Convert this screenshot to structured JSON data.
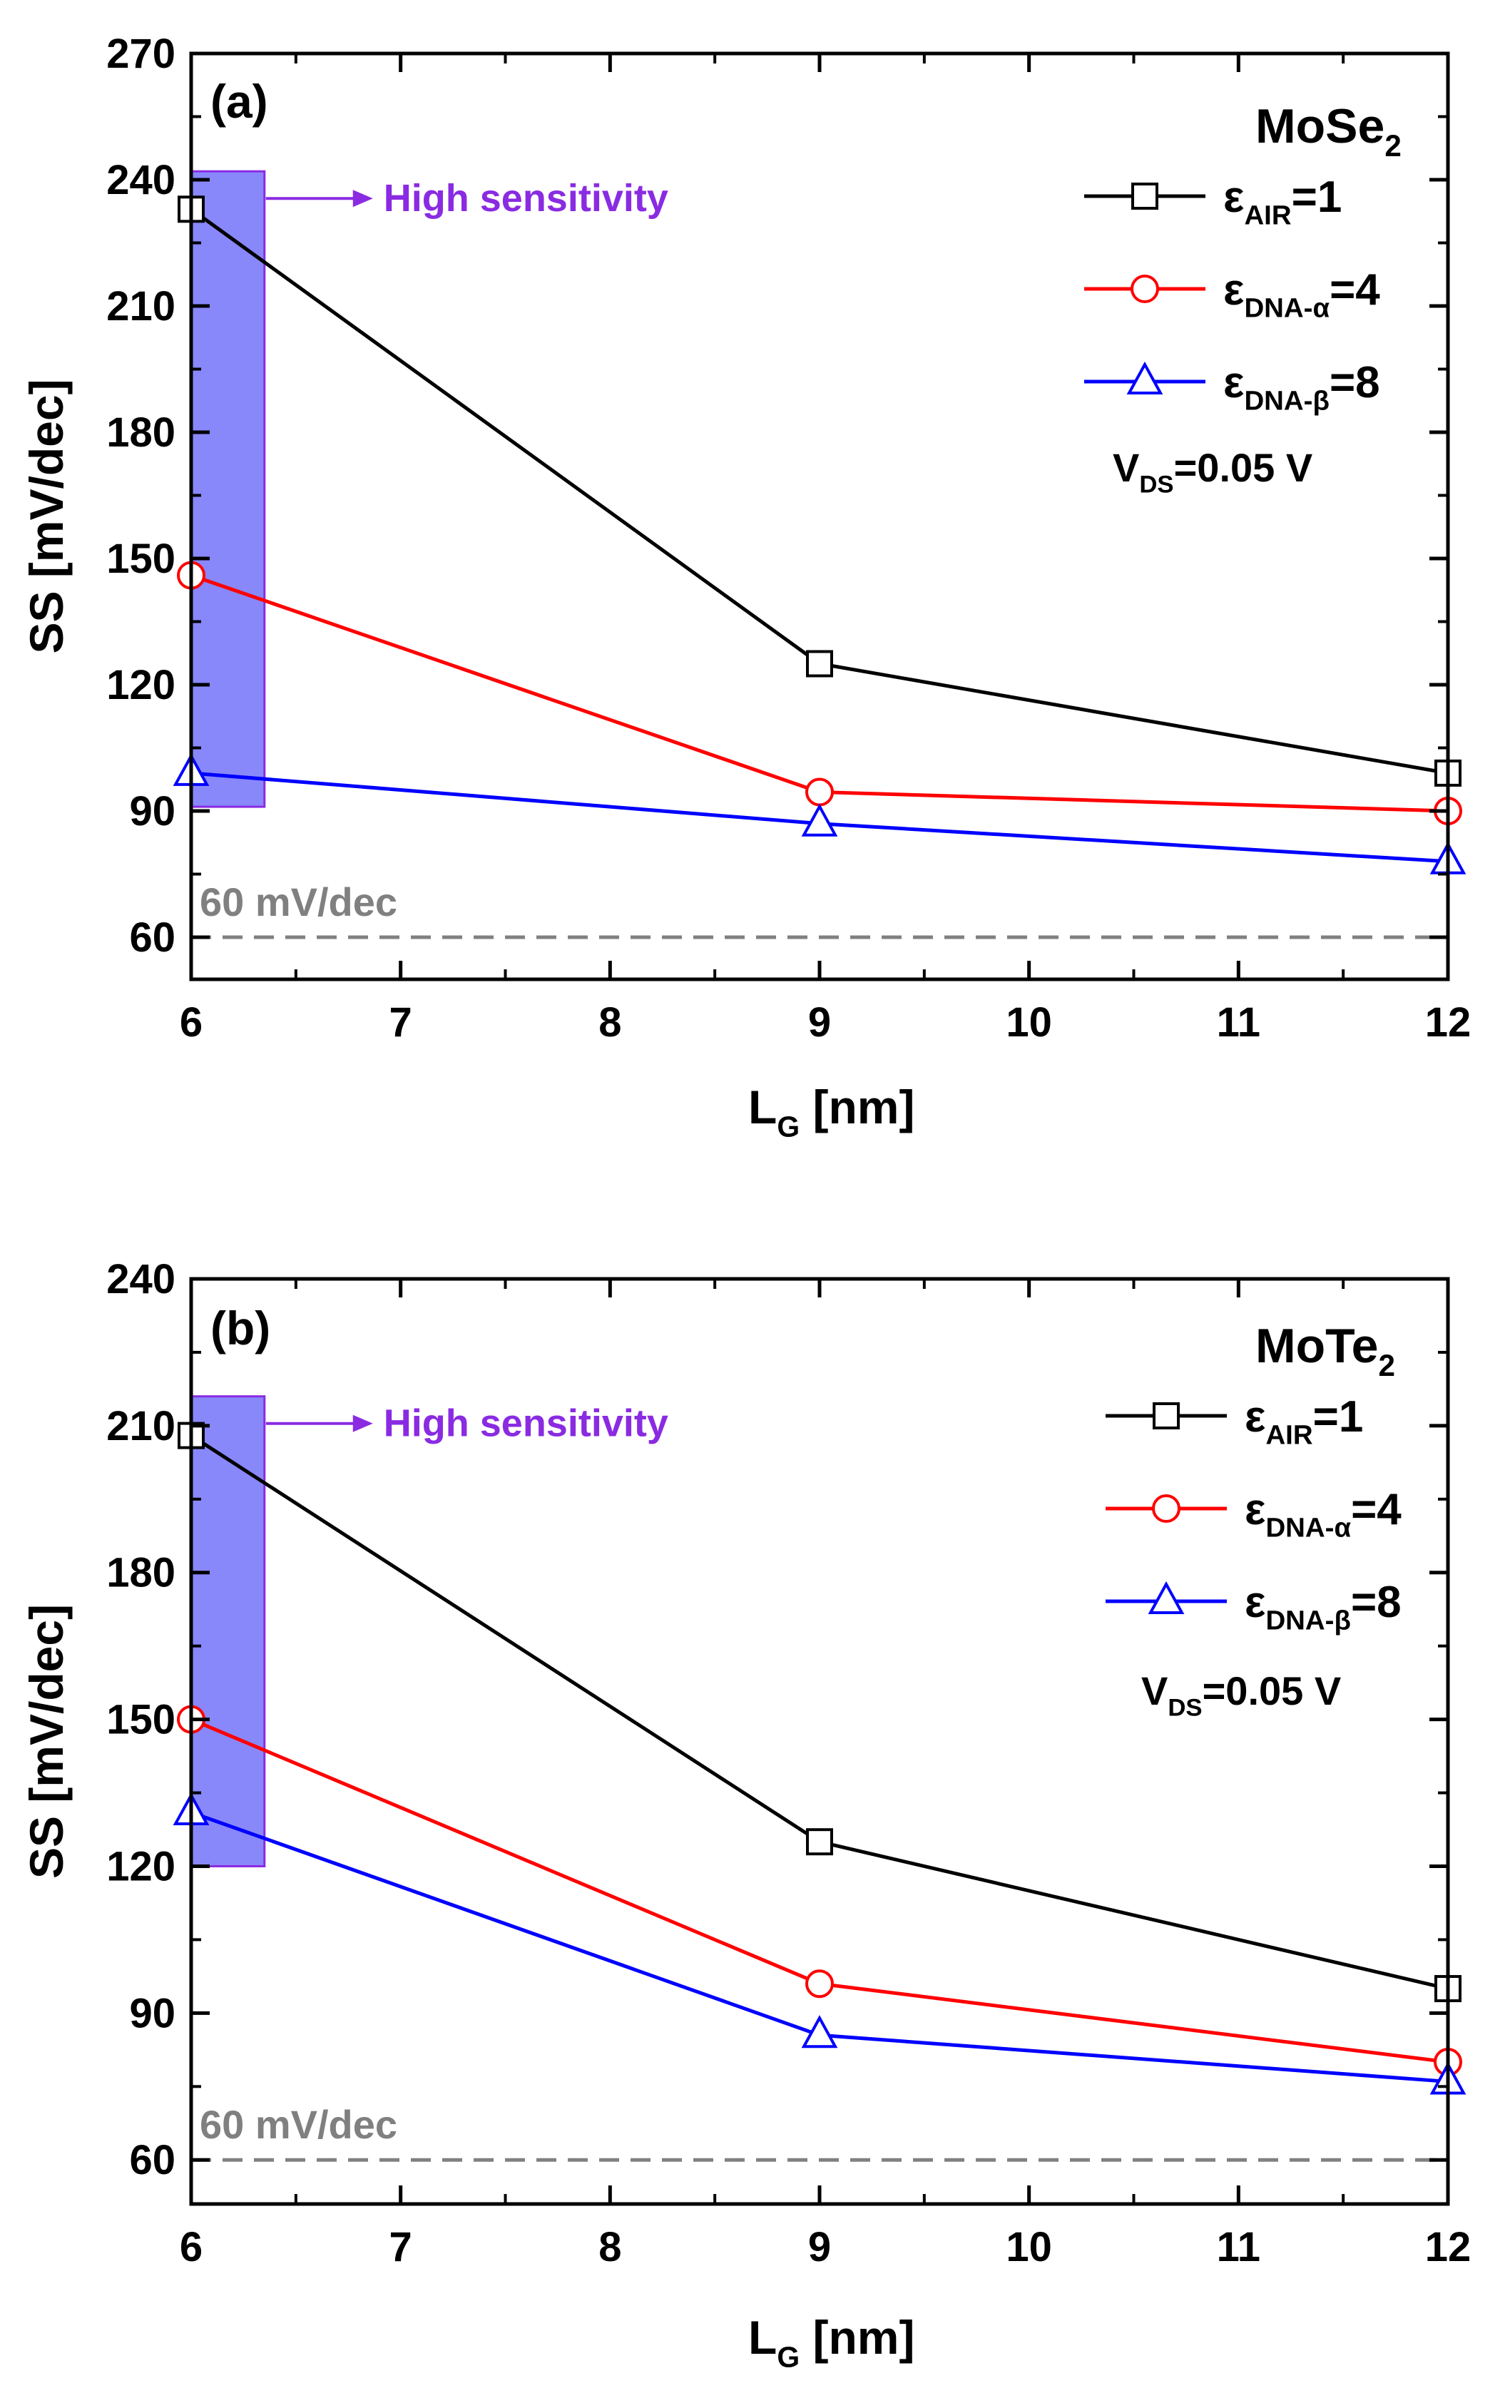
{
  "chart_data": [
    {
      "panel_label": "(a)",
      "material": "MoSe",
      "material_sub": "2",
      "type": "line",
      "x": [
        6,
        9,
        12
      ],
      "xlabel": "L",
      "xlabel_sub": "G",
      "xlabel_unit": " [nm]",
      "ylabel": "SS [mV/dec]",
      "xlim": [
        6,
        12
      ],
      "ylim": [
        50,
        270
      ],
      "xticks": [
        6,
        7,
        8,
        9,
        10,
        11,
        12
      ],
      "yticks": [
        60,
        90,
        120,
        150,
        180,
        210,
        240,
        270
      ],
      "series": [
        {
          "name": "ε",
          "name_sub": "AIR",
          "name_tail": "=1",
          "marker": "square",
          "color": "#000000",
          "values": [
            233,
            125,
            99
          ]
        },
        {
          "name": "ε",
          "name_sub": "DNA-α",
          "name_tail": "=4",
          "marker": "circle",
          "color": "#ff0000",
          "values": [
            146,
            94.5,
            90
          ]
        },
        {
          "name": "ε",
          "name_sub": "DNA-β",
          "name_tail": "=8",
          "marker": "triangle",
          "color": "#0000ff",
          "values": [
            99,
            87,
            78
          ]
        }
      ],
      "vds_label": "V",
      "vds_sub": "DS",
      "vds_tail": "=0.05 V",
      "reference_line": {
        "value": 60,
        "label": "60 mV/dec",
        "color": "#808080"
      },
      "highlight_box": {
        "x_range": [
          6,
          6.35
        ],
        "y_range": [
          91,
          242
        ],
        "label": "High sensitivity",
        "color": "#7b7bfb",
        "label_color": "#8a2be2"
      }
    },
    {
      "panel_label": "(b)",
      "material": "MoTe",
      "material_sub": "2",
      "type": "line",
      "x": [
        6,
        9,
        12
      ],
      "xlabel": "L",
      "xlabel_sub": "G",
      "xlabel_unit": " [nm]",
      "ylabel": "SS [mV/dec]",
      "xlim": [
        6,
        12
      ],
      "ylim": [
        51,
        240
      ],
      "xticks": [
        6,
        7,
        8,
        9,
        10,
        11,
        12
      ],
      "yticks": [
        60,
        90,
        120,
        150,
        180,
        210,
        240
      ],
      "series": [
        {
          "name": "ε",
          "name_sub": "AIR",
          "name_tail": "=1",
          "marker": "square",
          "color": "#000000",
          "values": [
            208,
            125,
            95
          ]
        },
        {
          "name": "ε",
          "name_sub": "DNA-α",
          "name_tail": "=4",
          "marker": "circle",
          "color": "#ff0000",
          "values": [
            150,
            96,
            80
          ]
        },
        {
          "name": "ε",
          "name_sub": "DNA-β",
          "name_tail": "=8",
          "marker": "triangle",
          "color": "#0000ff",
          "values": [
            131,
            85.5,
            76
          ]
        }
      ],
      "vds_label": "V",
      "vds_sub": "DS",
      "vds_tail": "=0.05 V",
      "reference_line": {
        "value": 60,
        "label": "60 mV/dec",
        "color": "#808080"
      },
      "highlight_box": {
        "x_range": [
          6,
          6.35
        ],
        "y_range": [
          120,
          216
        ],
        "label": "High sensitivity",
        "color": "#7b7bfb",
        "label_color": "#8a2be2"
      }
    }
  ]
}
